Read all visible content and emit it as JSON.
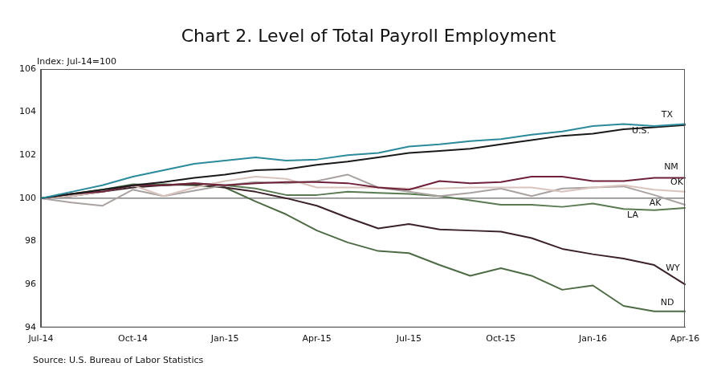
{
  "chart_data": {
    "type": "line",
    "title": "Chart 2. Level of Total Payroll Employment",
    "subtitle": "Index: Jul-14=100",
    "source": "Source: U.S. Bureau of Labor Statistics",
    "categories": [
      "Jul-14",
      null,
      null,
      "Oct-14",
      null,
      null,
      "Jan-15",
      null,
      null,
      "Apr-15",
      null,
      null,
      "Jul-15",
      null,
      null,
      "Oct-15",
      null,
      null,
      "Jan-16",
      null,
      null,
      "Apr-16"
    ],
    "series": [
      {
        "name": "TX",
        "color": "#2b8a9b",
        "values": [
          100,
          100.3,
          100.6,
          101.0,
          101.3,
          101.6,
          101.75,
          101.9,
          101.75,
          101.8,
          102.0,
          102.1,
          102.4,
          102.5,
          102.65,
          102.75,
          102.95,
          103.1,
          103.35,
          103.45,
          103.35,
          103.45
        ]
      },
      {
        "name": "U.S.",
        "color": "#1a1a1a",
        "values": [
          100,
          100.2,
          100.4,
          100.6,
          100.75,
          100.95,
          101.1,
          101.3,
          101.35,
          101.55,
          101.7,
          101.9,
          102.1,
          102.2,
          102.3,
          102.5,
          102.7,
          102.9,
          103.0,
          103.2,
          103.3,
          103.4
        ]
      },
      {
        "name": "NM",
        "color": "#6e2138",
        "values": [
          100,
          100.2,
          100.3,
          100.6,
          100.6,
          100.7,
          100.6,
          100.7,
          100.75,
          100.75,
          100.7,
          100.5,
          100.4,
          100.8,
          100.7,
          100.75,
          101.0,
          101.0,
          100.8,
          100.8,
          100.95,
          100.95
        ]
      },
      {
        "name": "OK",
        "color": "#d9c3bd",
        "values": [
          100,
          100.1,
          100.3,
          100.6,
          100.1,
          100.5,
          100.8,
          101.0,
          100.9,
          100.5,
          100.5,
          100.5,
          100.45,
          100.45,
          100.5,
          100.5,
          100.5,
          100.3,
          100.5,
          100.6,
          100.4,
          100.3
        ]
      },
      {
        "name": "AK",
        "color": "#a9a2a0",
        "values": [
          100,
          99.8,
          99.65,
          100.4,
          100.1,
          100.35,
          100.6,
          100.75,
          100.7,
          100.8,
          101.1,
          100.5,
          100.3,
          100.1,
          100.25,
          100.45,
          100.1,
          100.45,
          100.5,
          100.55,
          100.15,
          99.7
        ]
      },
      {
        "name": "LA",
        "color": "#5a7a52",
        "values": [
          100,
          100.2,
          100.4,
          100.65,
          100.6,
          100.7,
          100.6,
          100.45,
          100.15,
          100.15,
          100.3,
          100.25,
          100.2,
          100.1,
          99.9,
          99.7,
          99.7,
          99.6,
          99.75,
          99.5,
          99.45,
          99.55
        ]
      },
      {
        "name": "WY",
        "color": "#3b2228",
        "values": [
          100,
          100.1,
          100.3,
          100.5,
          100.6,
          100.65,
          100.5,
          100.3,
          100.0,
          99.65,
          99.1,
          98.6,
          98.8,
          98.55,
          98.5,
          98.45,
          98.15,
          97.65,
          97.4,
          97.2,
          96.9,
          96.0
        ]
      },
      {
        "name": "ND",
        "color": "#4e6b45",
        "values": [
          100,
          100.2,
          100.3,
          100.6,
          100.65,
          100.6,
          100.5,
          99.85,
          99.25,
          98.5,
          97.95,
          97.55,
          97.45,
          96.9,
          96.4,
          96.75,
          96.4,
          95.75,
          95.95,
          95.0,
          94.75,
          94.75
        ]
      }
    ],
    "ylim": [
      94,
      106
    ],
    "yticks": [
      94,
      96,
      98,
      100,
      102,
      104,
      106
    ],
    "grid": false,
    "baseline": 100
  }
}
